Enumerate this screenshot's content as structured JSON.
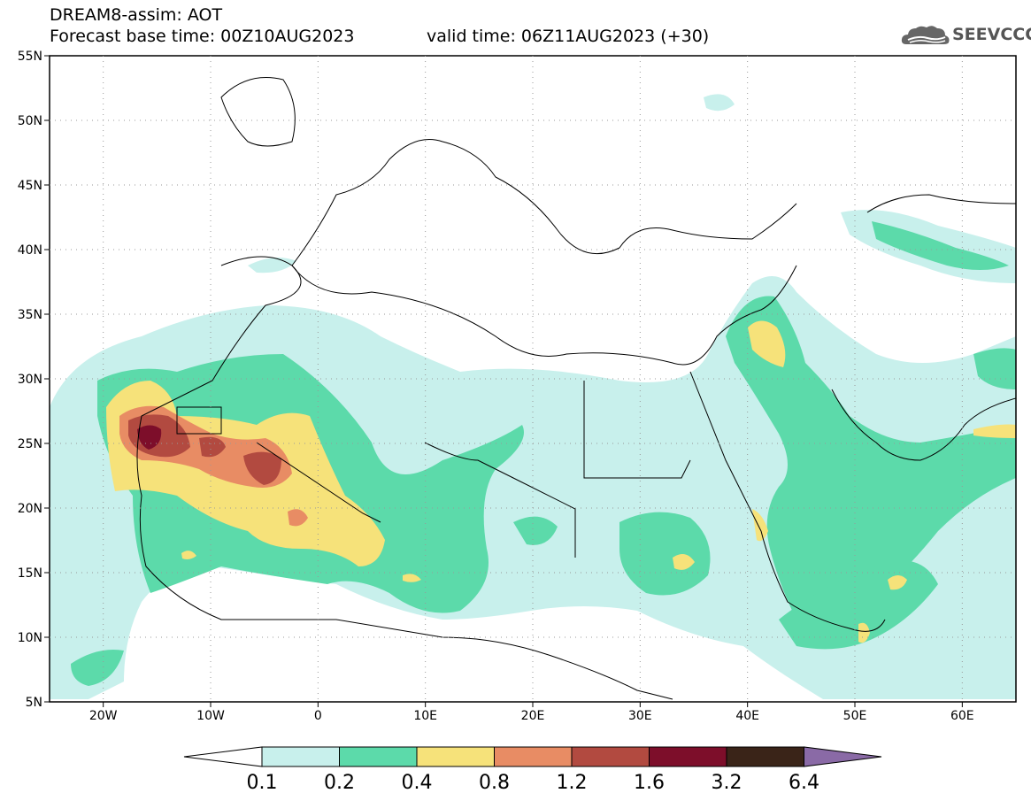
{
  "header": {
    "title_line1": "DREAM8-assim: AOT",
    "title_line2": "Forecast base time: 00Z10AUG2023",
    "valid_time": "valid time: 06Z11AUG2023 (+30)",
    "logo_text": "SEEVCCC",
    "logo_icon": "cloud-icon"
  },
  "map": {
    "lat_labels": [
      "55N",
      "50N",
      "45N",
      "40N",
      "35N",
      "30N",
      "25N",
      "20N",
      "15N",
      "10N",
      "5N"
    ],
    "lon_labels": [
      "20W",
      "10W",
      "0",
      "10E",
      "20E",
      "30E",
      "40E",
      "50E",
      "60E"
    ],
    "extent": {
      "lon": [
        -25,
        65
      ],
      "lat": [
        5,
        55
      ]
    }
  },
  "colorbar": {
    "labels": [
      "0.1",
      "0.2",
      "0.4",
      "0.8",
      "1.2",
      "1.6",
      "3.2",
      "6.4"
    ],
    "colors": [
      "#c8f0ec",
      "#5cdaaa",
      "#f6e27a",
      "#e88c64",
      "#b24a40",
      "#7d0e2a",
      "#3a2418"
    ],
    "under_color": "#ffffff",
    "over_color": "#8a6aa6"
  }
}
